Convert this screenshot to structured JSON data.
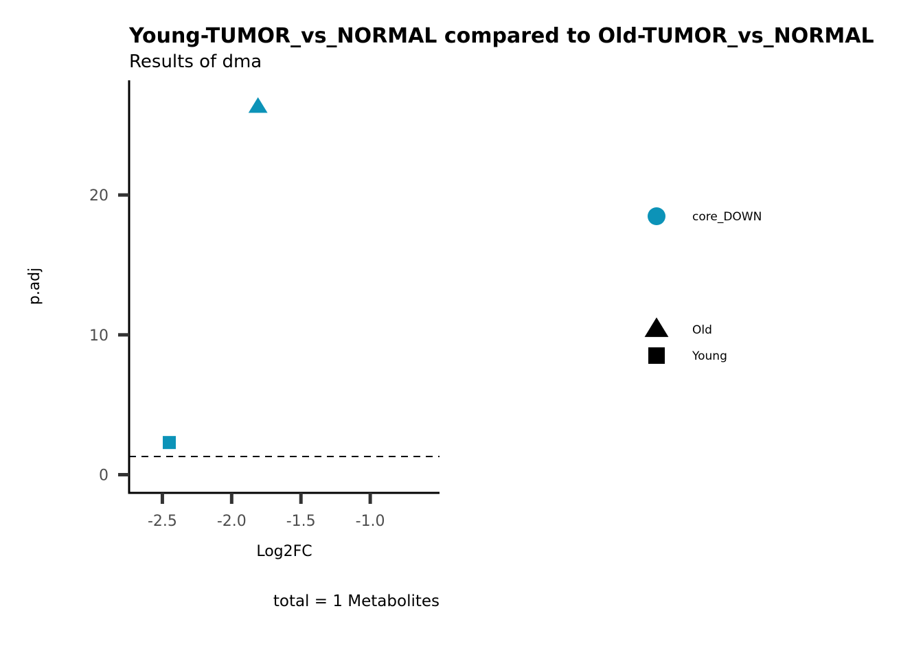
{
  "chart_data": {
    "type": "scatter",
    "title": "Young-TUMOR_vs_NORMAL compared to Old-TUMOR_vs_NORMAL",
    "subtitle": "Results of dma",
    "xlabel": "Log2FC",
    "ylabel": "p.adj",
    "caption": "total = 1 Metabolites",
    "xlim": [
      -2.74,
      -0.5
    ],
    "ylim": [
      -1.3,
      28.2
    ],
    "xticks": [
      -2.5,
      -2.0,
      -1.5,
      -1.0
    ],
    "xtick_labels": [
      "-2.5",
      "-2.0",
      "-1.5",
      "-1.0"
    ],
    "yticks": [
      0,
      10,
      20
    ],
    "ytick_labels": [
      "0",
      "10",
      "20"
    ],
    "threshold_line": {
      "y": 1.3,
      "style": "dashed"
    },
    "grid": false,
    "points": [
      {
        "x": -1.81,
        "y": 26.3,
        "shape": "triangle",
        "group": "Old",
        "category": "core_DOWN"
      },
      {
        "x": -2.45,
        "y": 2.3,
        "shape": "square",
        "group": "Young",
        "category": "core_DOWN"
      }
    ],
    "legend": {
      "placement": "right",
      "color_entries": [
        {
          "label": "core_DOWN",
          "color": "#0c93b8",
          "shape": "circle"
        }
      ],
      "shape_entries": [
        {
          "label": "Old",
          "shape": "triangle"
        },
        {
          "label": "Young",
          "shape": "square"
        }
      ]
    },
    "colors": {
      "core_DOWN": "#0c93b8",
      "axis": "#000000",
      "tick": "#333333"
    }
  }
}
